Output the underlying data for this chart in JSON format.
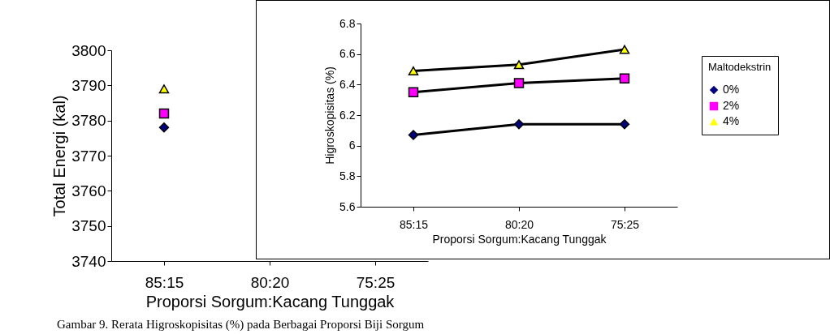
{
  "chart_data": [
    {
      "type": "line",
      "ylabel": "Total Energi (kal)",
      "xlabel": "Proporsi Sorgum:Kacang Tunggak",
      "categories": [
        "85:15",
        "80:20",
        "75:25"
      ],
      "ylim": [
        3740,
        3800
      ],
      "yticks": [
        3740,
        3750,
        3760,
        3770,
        3780,
        3790,
        3800
      ],
      "grid": false,
      "legend": false,
      "annotations": [
        "Gambar 9. Rerata Higroskopisitas (%) pada Berbagai Proporsi Biji Sorgum"
      ],
      "series": [
        {
          "color": "#000080",
          "marker": "diamond",
          "values": [
            3778,
            null,
            null
          ]
        },
        {
          "color": "#ff00ff",
          "marker": "square",
          "values": [
            3782,
            null,
            null
          ]
        },
        {
          "color": "#ffff00",
          "marker": "triangle",
          "values": [
            3789,
            null,
            null
          ]
        }
      ]
    },
    {
      "type": "line",
      "ylabel": "Higroskopisitas (%)",
      "xlabel": "Proporsi Sorgum:Kacang Tunggak",
      "legend_title": "Maltodekstrin",
      "categories": [
        "85:15",
        "80:20",
        "75:25"
      ],
      "ylim": [
        5.6,
        6.8
      ],
      "yticks": [
        5.6,
        5.8,
        6,
        6.2,
        6.4,
        6.6,
        6.8
      ],
      "grid": false,
      "legend": "right",
      "series": [
        {
          "name": "0%",
          "color": "#000080",
          "marker": "diamond",
          "values": [
            6.07,
            6.14,
            6.14
          ]
        },
        {
          "name": "2%",
          "color": "#ff00ff",
          "marker": "square",
          "values": [
            6.35,
            6.41,
            6.44
          ]
        },
        {
          "name": "4%",
          "color": "#ffff00",
          "marker": "triangle",
          "values": [
            6.49,
            6.53,
            6.63
          ]
        }
      ]
    }
  ]
}
